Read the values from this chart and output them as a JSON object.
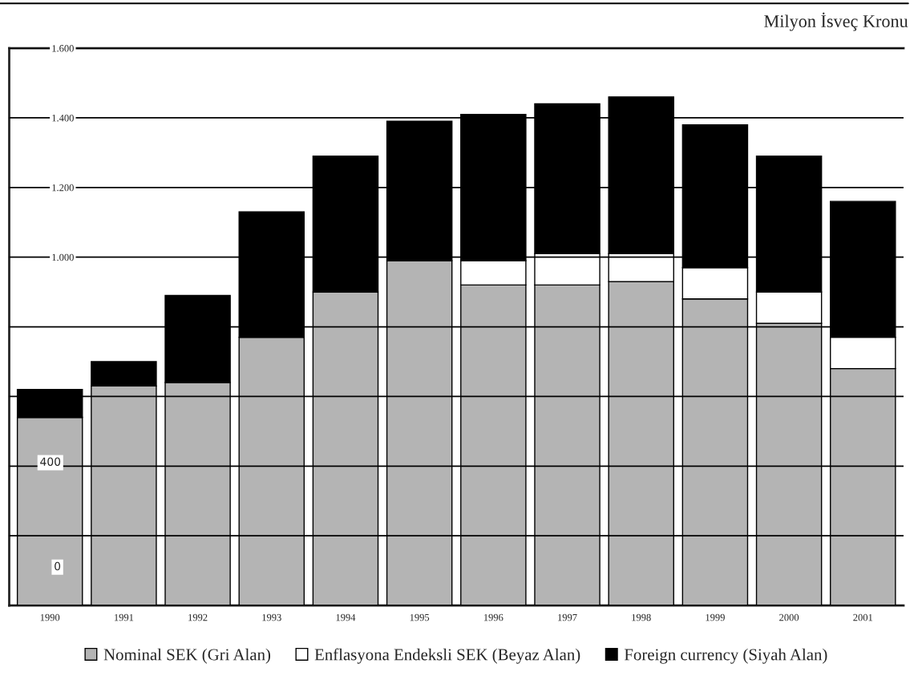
{
  "chart_data": {
    "type": "bar",
    "title": "Milyon İsveç Kronu",
    "stacked": true,
    "categories": [
      "1990",
      "1991",
      "1992",
      "1993",
      "1994",
      "1995",
      "1996",
      "1997",
      "1998",
      "1999",
      "2000",
      "2001"
    ],
    "series": [
      {
        "name": "Nominal SEK (Gri Alan)",
        "color": "#b4b4b4",
        "values": [
          540,
          630,
          640,
          770,
          900,
          990,
          920,
          920,
          930,
          880,
          810,
          680
        ]
      },
      {
        "name": "Enflasyona Endeksli SEK (Beyaz Alan)",
        "color": "#ffffff",
        "values": [
          0,
          0,
          0,
          0,
          0,
          0,
          70,
          90,
          80,
          90,
          90,
          90
        ]
      },
      {
        "name": "Foreign currency (Siyah Alan)",
        "color": "#000000",
        "values": [
          80,
          70,
          250,
          360,
          390,
          400,
          420,
          430,
          450,
          410,
          390,
          390
        ]
      }
    ],
    "ylim": [
      0,
      1600
    ],
    "yticks": [
      {
        "value": 0,
        "label": null
      },
      {
        "value": 200,
        "label": null
      },
      {
        "value": 400,
        "label": null
      },
      {
        "value": 600,
        "label": null
      },
      {
        "value": 800,
        "label": null
      },
      {
        "value": 1000,
        "label": "1.000"
      },
      {
        "value": 1200,
        "label": "1.200"
      },
      {
        "value": 1400,
        "label": "1.400"
      },
      {
        "value": 1600,
        "label": "1.600"
      }
    ],
    "annotations": [
      "400",
      "0"
    ],
    "grid": "y",
    "legend": "bottom"
  }
}
